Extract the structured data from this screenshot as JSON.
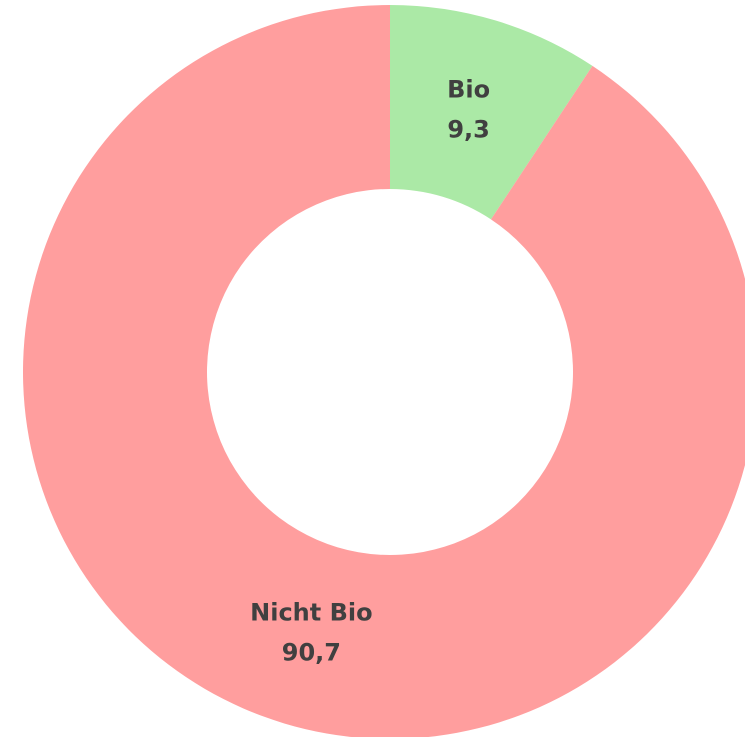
{
  "chart_data": {
    "type": "donut",
    "categories": [
      "Bio",
      "Nicht Bio"
    ],
    "values": [
      9.3,
      90.7
    ],
    "value_labels": [
      "9,3",
      "90,7"
    ],
    "colors": [
      "#abe9a6",
      "#ff9e9e"
    ]
  }
}
